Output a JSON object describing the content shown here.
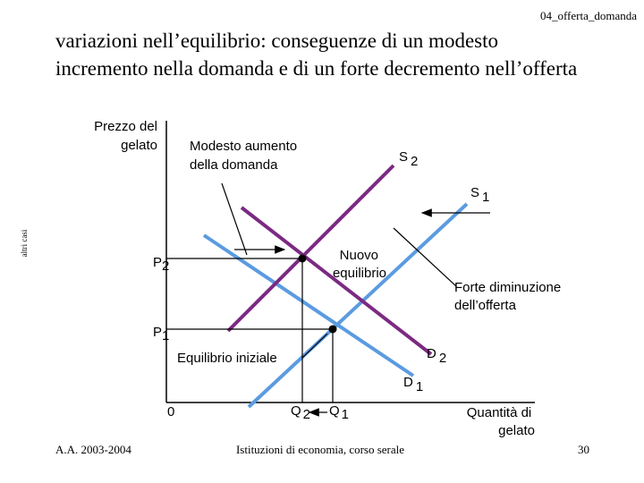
{
  "header": {
    "page_ref": "04_offerta_domanda",
    "title": [
      "variazioni nell’equilibrio: conseguenze di un modesto",
      "incremento nella domanda e di un forte decremento nell’offerta"
    ]
  },
  "side_label": "altri casi",
  "diagram": {
    "y_axis_label": [
      "Prezzo del",
      "gelato"
    ],
    "x_axis_label": [
      "Quantità di",
      "gelato"
    ],
    "origin": "0",
    "curves": {
      "s2": [
        "S",
        "2"
      ],
      "s1": [
        "S",
        "1"
      ],
      "d2": [
        "D",
        "2"
      ],
      "d1": [
        "D",
        "1"
      ]
    },
    "prices": {
      "p2": [
        "P",
        "2"
      ],
      "p1": [
        "P",
        "1"
      ]
    },
    "quantities": {
      "q2": [
        "Q",
        "2"
      ],
      "q1": [
        "Q",
        "1"
      ]
    },
    "annotations": {
      "demand_shift": [
        "Modesto aumento",
        "della domanda"
      ],
      "new_equilibrium": [
        "Nuovo",
        "equilibrio"
      ],
      "supply_shift": [
        "Forte diminuzione",
        "dell’offerta"
      ],
      "initial_equilibrium": "Equilibrio iniziale"
    }
  },
  "footer": {
    "year": "A.A. 2003-2004",
    "course": "Istituzioni di economia, corso serale",
    "page": "30"
  }
}
